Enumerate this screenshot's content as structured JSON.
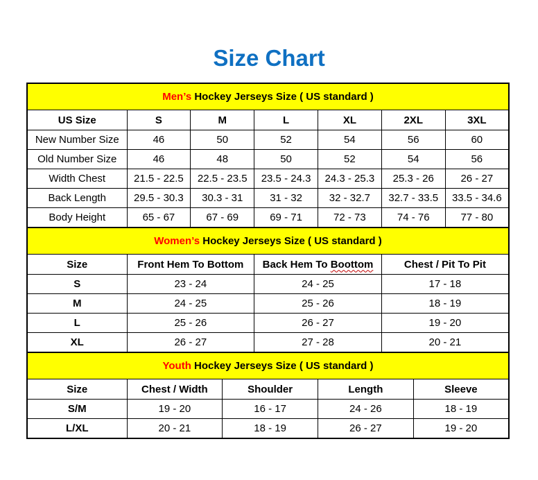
{
  "page": {
    "title": "Size Chart"
  },
  "colors": {
    "title_blue": "#0F70C2",
    "accent_red": "#FF0000",
    "band_yellow": "#FFFF00",
    "border_black": "#000000"
  },
  "tables": [
    {
      "id": "mens",
      "banner": {
        "highlight": "Men’s",
        "rest": " Hockey Jerseys Size ( US standard )"
      },
      "columns": [
        "US Size",
        "S",
        "M",
        "L",
        "XL",
        "2XL",
        "3XL"
      ],
      "rows": [
        [
          "New Number Size",
          "46",
          "50",
          "52",
          "54",
          "56",
          "60"
        ],
        [
          "Old Number Size",
          "46",
          "48",
          "50",
          "52",
          "54",
          "56"
        ],
        [
          "Width Chest",
          "21.5 - 22.5",
          "22.5 - 23.5",
          "23.5 - 24.3",
          "24.3 - 25.3",
          "25.3 - 26",
          "26 - 27"
        ],
        [
          "Back Length",
          "29.5 - 30.3",
          "30.3 - 31",
          "31 - 32",
          "32 - 32.7",
          "32.7 - 33.5",
          "33.5 - 34.6"
        ],
        [
          "Body Height",
          "65 - 67",
          "67 - 69",
          "69 - 71",
          "72 - 73",
          "74 - 76",
          "77 - 80"
        ]
      ]
    },
    {
      "id": "womens",
      "banner": {
        "highlight": "Women’s",
        "rest": " Hockey Jerseys Size ( US standard )"
      },
      "columns": [
        "Size",
        "Front Hem To Bottom",
        {
          "label": "Back Hem To Boottom",
          "wavy_word": "Boottom"
        },
        "Chest / Pit To Pit"
      ],
      "rows": [
        [
          "S",
          "23 - 24",
          "24 - 25",
          "17 - 18"
        ],
        [
          "M",
          "24 - 25",
          "25 - 26",
          "18 - 19"
        ],
        [
          "L",
          "25 - 26",
          "26 - 27",
          "19 - 20"
        ],
        [
          "XL",
          "26 - 27",
          "27 - 28",
          "20 - 21"
        ]
      ]
    },
    {
      "id": "youth",
      "banner": {
        "highlight": "Youth",
        "rest": " Hockey Jerseys Size ( US standard )"
      },
      "columns": [
        "Size",
        "Chest / Width",
        "Shoulder",
        "Length",
        "Sleeve"
      ],
      "rows": [
        [
          "S/M",
          "19 - 20",
          "16 - 17",
          "24 - 26",
          "18 - 19"
        ],
        [
          "L/XL",
          "20 - 21",
          "18 - 19",
          "26 - 27",
          "19 - 20"
        ]
      ]
    }
  ]
}
